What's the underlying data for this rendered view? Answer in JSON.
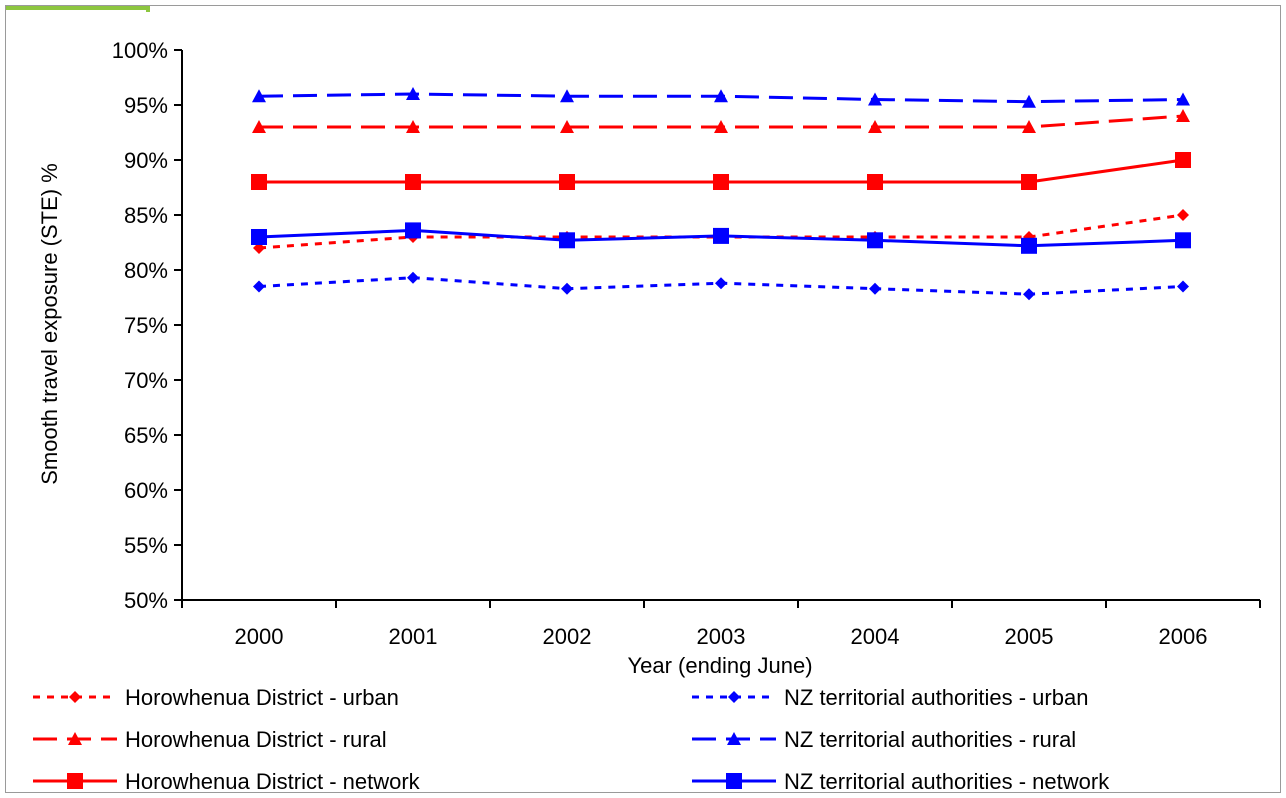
{
  "colors": {
    "red": "#ff0000",
    "blue": "#0000ff",
    "accent": "#8dc63f",
    "axis": "#000000"
  },
  "chart_data": {
    "type": "line",
    "categories": [
      "2000",
      "2001",
      "2002",
      "2003",
      "2004",
      "2005",
      "2006"
    ],
    "ylim": [
      0.5,
      1.0
    ],
    "y_ticks": [
      "50%",
      "55%",
      "60%",
      "65%",
      "70%",
      "75%",
      "80%",
      "85%",
      "90%",
      "95%",
      "100%"
    ],
    "y_tick_values": [
      0.5,
      0.55,
      0.6,
      0.65,
      0.7,
      0.75,
      0.8,
      0.85,
      0.9,
      0.95,
      1.0
    ],
    "xlabel": "Year (ending June)",
    "ylabel": "Smooth travel exposure (STE) %",
    "grid": false,
    "legend_position": "bottom",
    "series": [
      {
        "name": "Horowhenua District - urban",
        "color": "#ff0000",
        "dash": "short",
        "marker": "diamond",
        "values": [
          0.82,
          0.83,
          0.83,
          0.83,
          0.83,
          0.83,
          0.85
        ]
      },
      {
        "name": "NZ territorial authorities - urban",
        "color": "#0000ff",
        "dash": "short",
        "marker": "diamond",
        "values": [
          0.785,
          0.793,
          0.783,
          0.788,
          0.783,
          0.778,
          0.785
        ]
      },
      {
        "name": "Horowhenua District - rural",
        "color": "#ff0000",
        "dash": "long",
        "marker": "triangle",
        "values": [
          0.93,
          0.93,
          0.93,
          0.93,
          0.93,
          0.93,
          0.94
        ]
      },
      {
        "name": "NZ territorial authorities - rural",
        "color": "#0000ff",
        "dash": "long",
        "marker": "triangle",
        "values": [
          0.958,
          0.96,
          0.958,
          0.958,
          0.955,
          0.953,
          0.955
        ]
      },
      {
        "name": "Horowhenua District - network",
        "color": "#ff0000",
        "dash": "solid",
        "marker": "square",
        "values": [
          0.88,
          0.88,
          0.88,
          0.88,
          0.88,
          0.88,
          0.9
        ]
      },
      {
        "name": "NZ territorial authorities - network",
        "color": "#0000ff",
        "dash": "solid",
        "marker": "square",
        "values": [
          0.83,
          0.836,
          0.827,
          0.831,
          0.827,
          0.822,
          0.827
        ]
      }
    ]
  }
}
